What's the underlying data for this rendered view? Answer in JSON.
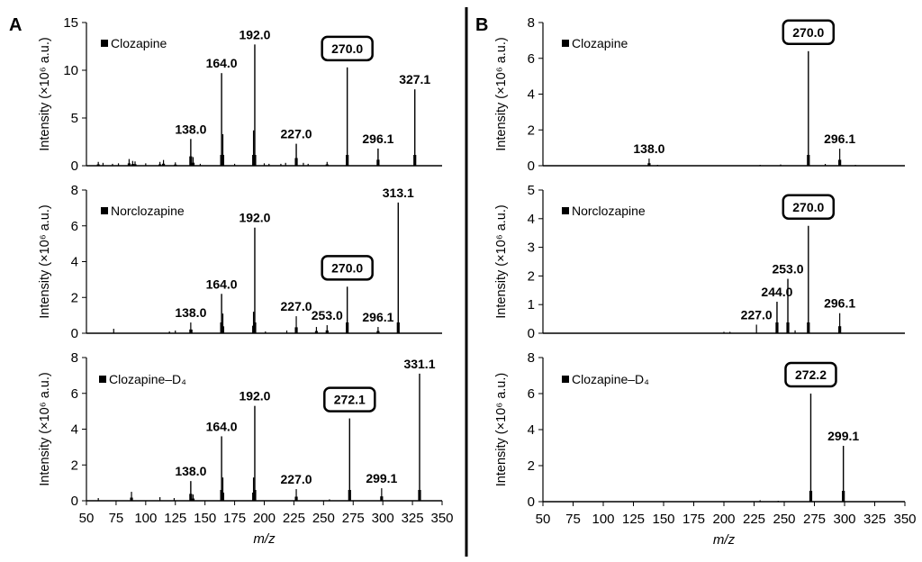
{
  "chart_data": [
    {
      "type": "bar",
      "panel": "A",
      "title": "Clozapine",
      "xlabel": "m/z",
      "ylabel": "Intensity (×10⁶ a.u.)",
      "xlim": [
        50,
        350
      ],
      "ylim": [
        0,
        15
      ],
      "yticks": [
        "0",
        "5",
        "10",
        "15"
      ],
      "xticks": [],
      "boxed_label": "270.0",
      "peaks": [
        {
          "mz": 60,
          "intensity": 0.4
        },
        {
          "mz": 64,
          "intensity": 0.3
        },
        {
          "mz": 72,
          "intensity": 0.2
        },
        {
          "mz": 77,
          "intensity": 0.25
        },
        {
          "mz": 86,
          "intensity": 0.7
        },
        {
          "mz": 89,
          "intensity": 0.5
        },
        {
          "mz": 91,
          "intensity": 0.45
        },
        {
          "mz": 100,
          "intensity": 0.25
        },
        {
          "mz": 112,
          "intensity": 0.4
        },
        {
          "mz": 115,
          "intensity": 0.6
        },
        {
          "mz": 125,
          "intensity": 0.35
        },
        {
          "mz": 138,
          "label": "138.0",
          "intensity": 2.8
        },
        {
          "mz": 140,
          "intensity": 0.9
        },
        {
          "mz": 146,
          "intensity": 0.2
        },
        {
          "mz": 164,
          "label": "164.0",
          "intensity": 9.7
        },
        {
          "mz": 165,
          "intensity": 3.3
        },
        {
          "mz": 175,
          "intensity": 0.2
        },
        {
          "mz": 192,
          "label": "192.0",
          "intensity": 12.7
        },
        {
          "mz": 191,
          "intensity": 3.7
        },
        {
          "mz": 200,
          "intensity": 0.25
        },
        {
          "mz": 204,
          "intensity": 0.2
        },
        {
          "mz": 214,
          "intensity": 0.2
        },
        {
          "mz": 218,
          "intensity": 0.3
        },
        {
          "mz": 227,
          "label": "227.0",
          "intensity": 2.3
        },
        {
          "mz": 233,
          "intensity": 0.3
        },
        {
          "mz": 237,
          "intensity": 0.2
        },
        {
          "mz": 253,
          "intensity": 0.4
        },
        {
          "mz": 270,
          "label": "270.0",
          "intensity": 10.3,
          "boxed": true
        },
        {
          "mz": 296,
          "label": "296.1",
          "intensity": 1.8
        },
        {
          "mz": 327,
          "label": "327.1",
          "intensity": 8.0
        }
      ]
    },
    {
      "type": "bar",
      "panel": "A",
      "title": "Norclozapine",
      "xlabel": "m/z",
      "ylabel": "Intensity (×10⁶ a.u.)",
      "xlim": [
        50,
        350
      ],
      "ylim": [
        0,
        8
      ],
      "yticks": [
        "0",
        "2",
        "4",
        "6",
        "8"
      ],
      "xticks": [],
      "boxed_label": "270.0",
      "peaks": [
        {
          "mz": 73,
          "intensity": 0.25
        },
        {
          "mz": 120,
          "intensity": 0.1
        },
        {
          "mz": 125,
          "intensity": 0.15
        },
        {
          "mz": 138,
          "label": "138.0",
          "intensity": 0.6
        },
        {
          "mz": 139,
          "intensity": 0.2
        },
        {
          "mz": 164,
          "label": "164.0",
          "intensity": 2.2
        },
        {
          "mz": 165,
          "intensity": 1.1
        },
        {
          "mz": 192,
          "label": "192.0",
          "intensity": 5.9
        },
        {
          "mz": 191,
          "intensity": 1.2
        },
        {
          "mz": 201,
          "intensity": 0.1
        },
        {
          "mz": 219,
          "intensity": 0.15
        },
        {
          "mz": 227,
          "label": "227.0",
          "intensity": 0.95
        },
        {
          "mz": 244,
          "intensity": 0.35
        },
        {
          "mz": 253,
          "label": "253.0",
          "intensity": 0.45
        },
        {
          "mz": 270,
          "label": "270.0",
          "intensity": 2.6,
          "boxed": true
        },
        {
          "mz": 296,
          "label": "296.1",
          "intensity": 0.35
        },
        {
          "mz": 313,
          "label": "313.1",
          "intensity": 7.3
        }
      ]
    },
    {
      "type": "bar",
      "panel": "A",
      "title": "Clozapine–D₄",
      "xlabel": "m/z",
      "ylabel": "Intensity (×10⁶ a.u.)",
      "xlim": [
        50,
        350
      ],
      "ylim": [
        0,
        8
      ],
      "yticks": [
        "0",
        "2",
        "4",
        "6",
        "8"
      ],
      "xticks": [
        "50",
        "75",
        "100",
        "125",
        "150",
        "175",
        "200",
        "225",
        "250",
        "275",
        "300",
        "325",
        "350"
      ],
      "boxed_label": "272.1",
      "peaks": [
        {
          "mz": 60,
          "intensity": 0.15
        },
        {
          "mz": 88,
          "intensity": 0.5
        },
        {
          "mz": 112,
          "intensity": 0.2
        },
        {
          "mz": 124,
          "intensity": 0.15
        },
        {
          "mz": 138,
          "label": "138.0",
          "intensity": 1.1
        },
        {
          "mz": 140,
          "intensity": 0.35
        },
        {
          "mz": 164,
          "label": "164.0",
          "intensity": 3.6
        },
        {
          "mz": 165,
          "intensity": 1.3
        },
        {
          "mz": 192,
          "label": "192.0",
          "intensity": 5.3
        },
        {
          "mz": 191,
          "intensity": 1.3
        },
        {
          "mz": 227,
          "label": "227.0",
          "intensity": 0.65
        },
        {
          "mz": 255,
          "intensity": 0.08
        },
        {
          "mz": 272,
          "label": "272.1",
          "intensity": 4.6,
          "boxed": true
        },
        {
          "mz": 299,
          "label": "299.1",
          "intensity": 0.7
        },
        {
          "mz": 331,
          "label": "331.1",
          "intensity": 7.1
        }
      ]
    },
    {
      "type": "bar",
      "panel": "B",
      "title": "Clozapine",
      "xlabel": "m/z",
      "ylabel": "Intensity (×10⁶ a.u.)",
      "xlim": [
        50,
        350
      ],
      "ylim": [
        0,
        8
      ],
      "yticks": [
        "0",
        "2",
        "4",
        "6",
        "8"
      ],
      "xticks": [],
      "boxed_label": "270.0",
      "peaks": [
        {
          "mz": 138,
          "label": "138.0",
          "intensity": 0.4
        },
        {
          "mz": 145,
          "intensity": 0.05
        },
        {
          "mz": 230,
          "intensity": 0.05
        },
        {
          "mz": 247,
          "intensity": 0.07
        },
        {
          "mz": 270,
          "label": "270.0",
          "intensity": 6.4,
          "boxed": true
        },
        {
          "mz": 284,
          "intensity": 0.1
        },
        {
          "mz": 296,
          "label": "296.1",
          "intensity": 0.95
        },
        {
          "mz": 309,
          "intensity": 0.05
        }
      ]
    },
    {
      "type": "bar",
      "panel": "B",
      "title": "Norclozapine",
      "xlabel": "m/z",
      "ylabel": "Intensity (×10⁶ a.u.)",
      "xlim": [
        50,
        350
      ],
      "ylim": [
        0,
        5
      ],
      "yticks": [
        "0",
        "1",
        "2",
        "3",
        "4",
        "5"
      ],
      "xticks": [],
      "boxed_label": "270.0",
      "peaks": [
        {
          "mz": 200,
          "intensity": 0.05
        },
        {
          "mz": 205,
          "intensity": 0.05
        },
        {
          "mz": 227,
          "label": "227.0",
          "intensity": 0.3
        },
        {
          "mz": 244,
          "label": "244.0",
          "intensity": 1.1
        },
        {
          "mz": 253,
          "label": "253.0",
          "intensity": 1.9
        },
        {
          "mz": 259,
          "intensity": 0.1
        },
        {
          "mz": 270,
          "label": "270.0",
          "intensity": 3.75,
          "boxed": true
        },
        {
          "mz": 296,
          "label": "296.1",
          "intensity": 0.7
        }
      ]
    },
    {
      "type": "bar",
      "panel": "B",
      "title": "Clozapine–D₄",
      "xlabel": "m/z",
      "ylabel": "Intensity (×10⁶ a.u.)",
      "xlim": [
        50,
        350
      ],
      "ylim": [
        0,
        8
      ],
      "yticks": [
        "0",
        "2",
        "4",
        "6",
        "8"
      ],
      "xticks": [
        "50",
        "75",
        "100",
        "125",
        "150",
        "175",
        "200",
        "225",
        "250",
        "275",
        "300",
        "325",
        "350"
      ],
      "boxed_label": "272.2",
      "peaks": [
        {
          "mz": 230,
          "intensity": 0.08
        },
        {
          "mz": 245,
          "intensity": 0.05
        },
        {
          "mz": 272,
          "label": "272.2",
          "intensity": 6.0,
          "boxed": true
        },
        {
          "mz": 299,
          "label": "299.1",
          "intensity": 3.1
        }
      ]
    }
  ],
  "panels": {
    "a_letter": "A",
    "b_letter": "B"
  },
  "legend_marker_color": "#000000",
  "line_color": "#000000"
}
